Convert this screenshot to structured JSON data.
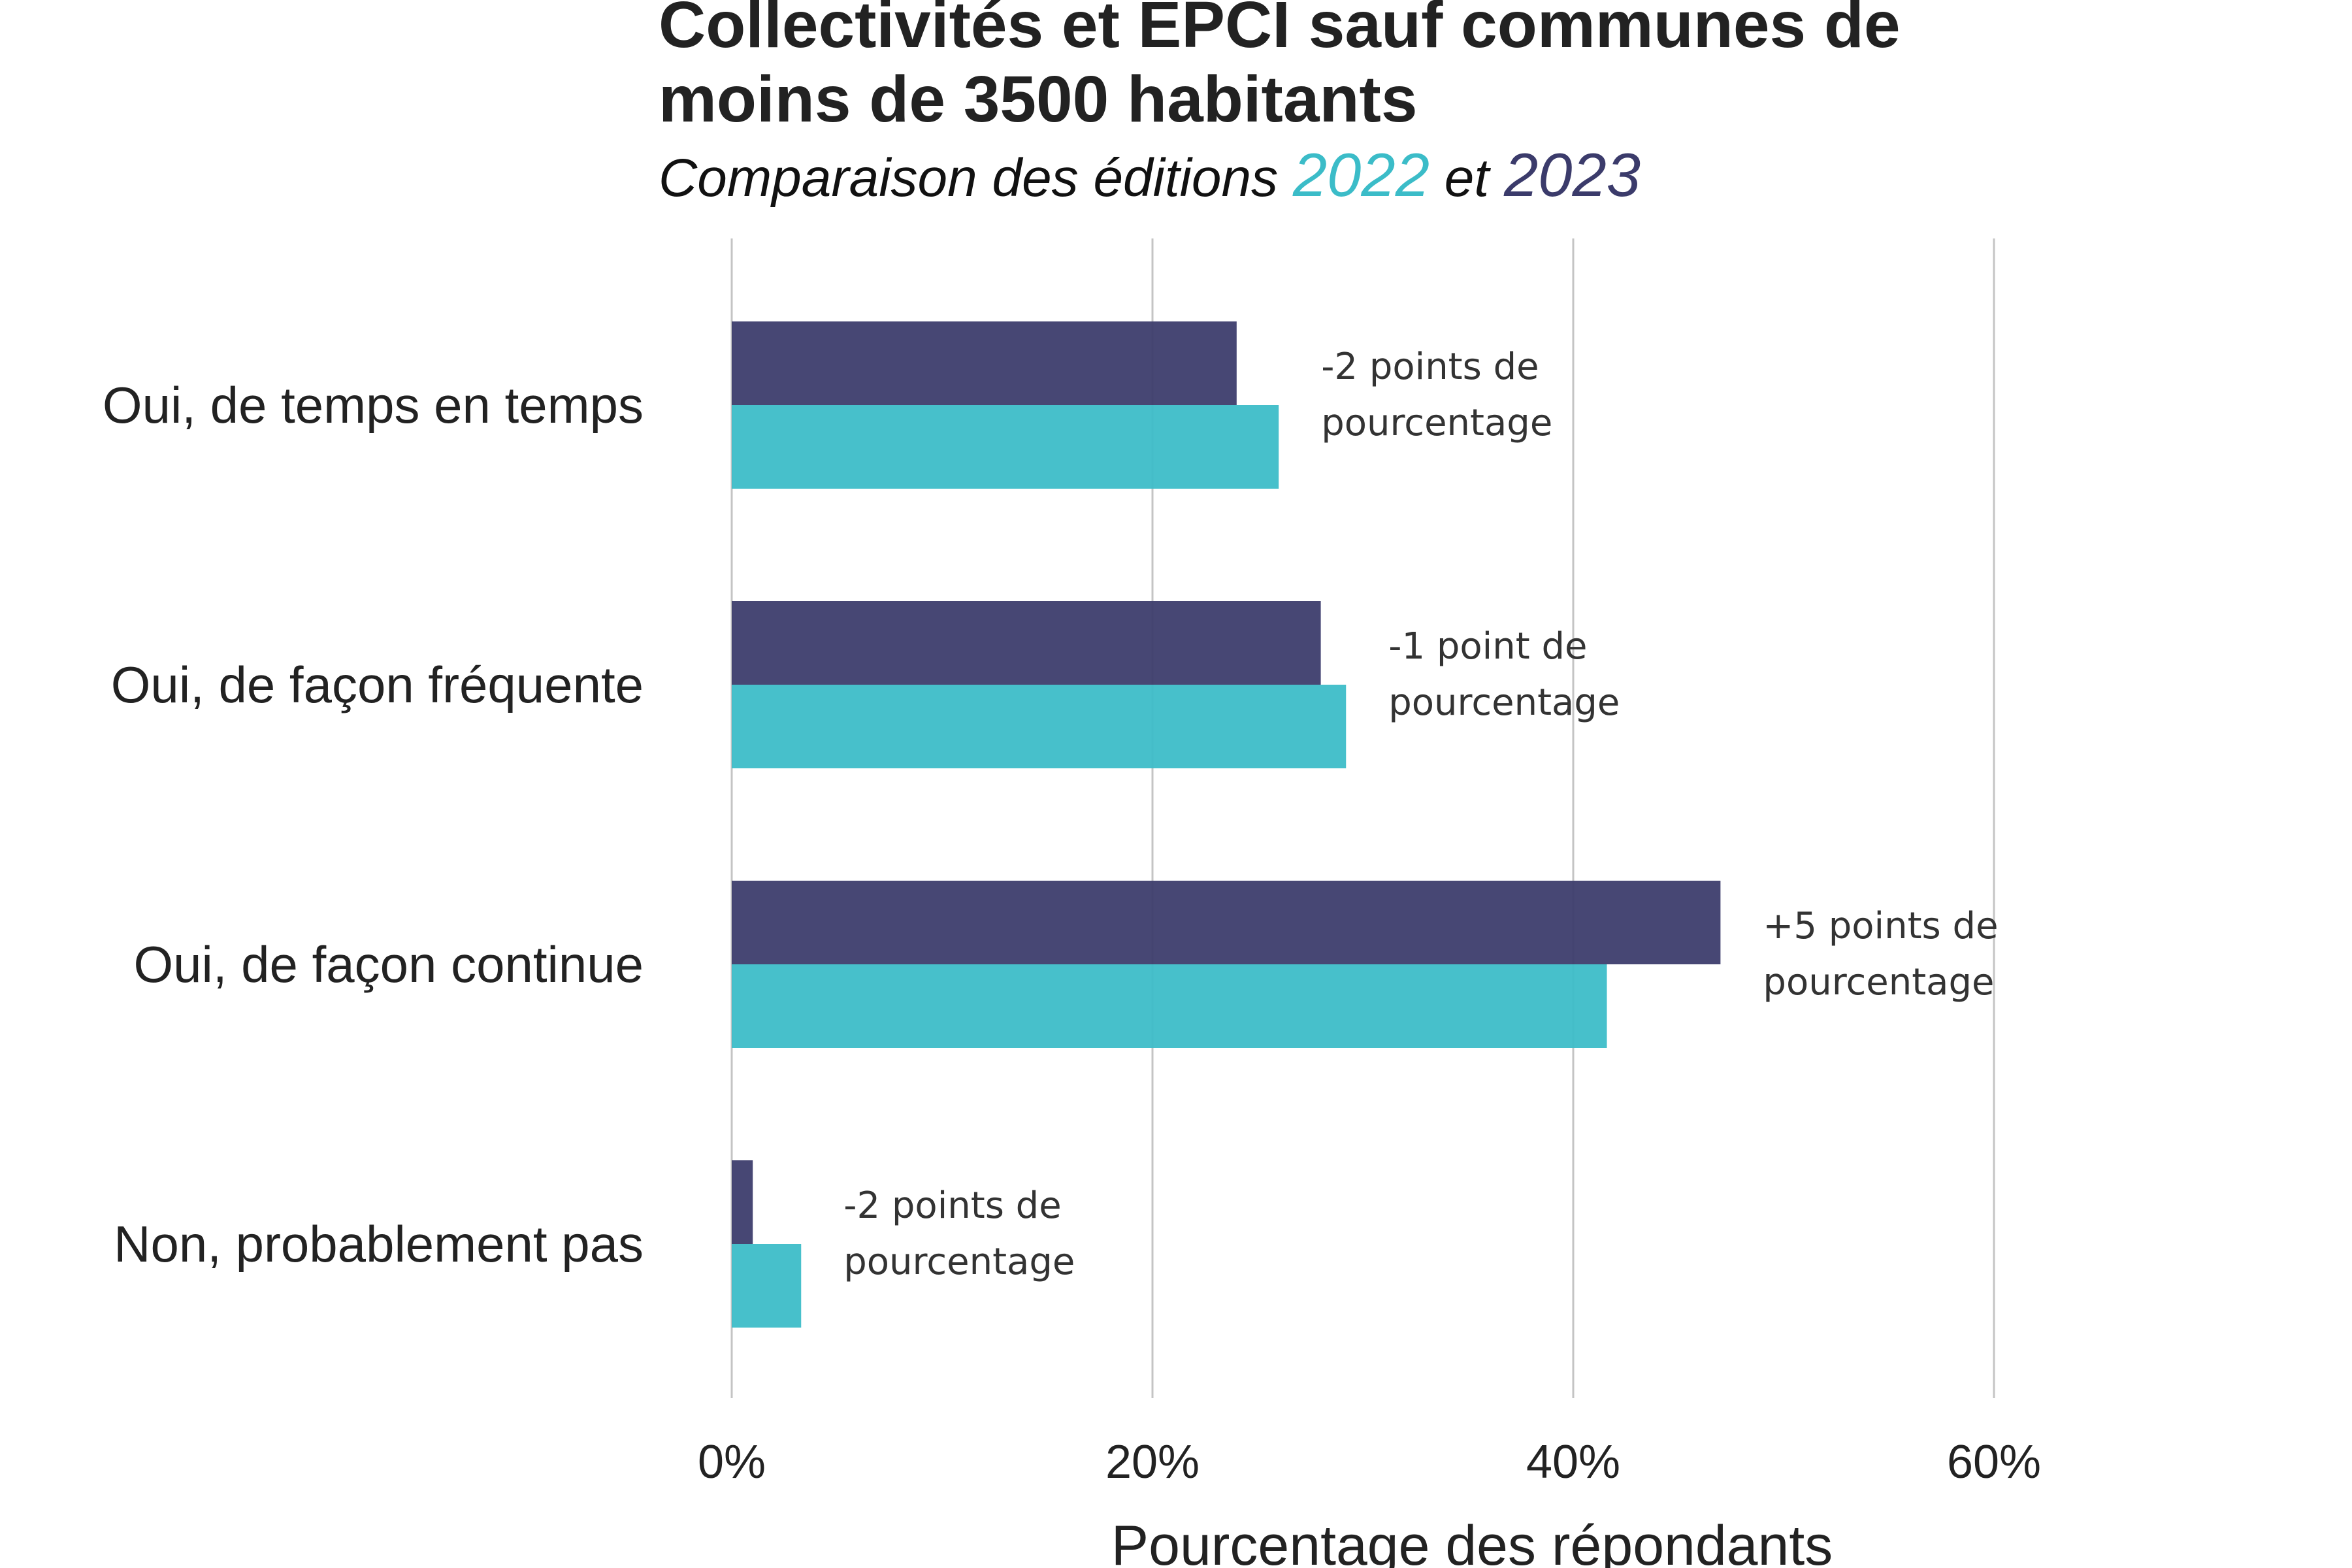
{
  "chart_data": {
    "type": "bar",
    "orientation": "horizontal",
    "title_line1": "Collectivités et EPCI sauf communes de",
    "title_line2": "moins de 3500 habitants",
    "subtitle": {
      "prefix": "Comparaison des éditions ",
      "year_a": "2022",
      "connector": " et ",
      "year_b": "2023"
    },
    "categories": [
      "Oui, de temps en temps",
      "Oui, de façon fréquente",
      "Oui, de façon continue",
      "Non, probablement pas"
    ],
    "series": [
      {
        "name": "2023",
        "color": "#3b3b6b",
        "values": [
          24,
          28,
          47,
          1
        ]
      },
      {
        "name": "2022",
        "color": "#3bbcc8",
        "values": [
          26,
          29.2,
          41.6,
          3.3
        ]
      }
    ],
    "annotations": [
      [
        "-2 points de",
        "pourcentage"
      ],
      [
        "-1 point de",
        "pourcentage"
      ],
      [
        "+5 points de",
        "pourcentage"
      ],
      [
        "-2 points de",
        "pourcentage"
      ]
    ],
    "xlim": [
      0,
      70
    ],
    "xticks": [
      0,
      20,
      40,
      60
    ],
    "xtick_labels": [
      "0%",
      "20%",
      "40%",
      "60%"
    ],
    "xlabel": "Pourcentage des répondants",
    "ylabel": "",
    "grid": "vertical",
    "legend": "none"
  }
}
